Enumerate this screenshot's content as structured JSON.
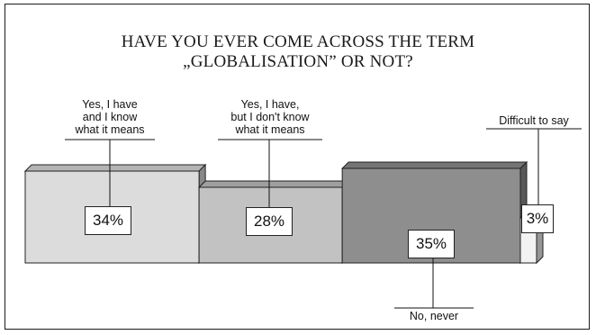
{
  "chart_data": {
    "type": "bar",
    "title": [
      "HAVE YOU EVER COME ACROSS THE TERM",
      "„GLOBALISATION” OR NOT?"
    ],
    "categories": [
      [
        "Yes, I have",
        "and I know",
        "what it means"
      ],
      [
        "Yes, I have,",
        "but I don't know",
        "what it means"
      ],
      [
        "No, never"
      ],
      [
        "Difficult to say"
      ]
    ],
    "values": [
      34,
      28,
      35,
      3
    ],
    "value_labels": [
      "34%",
      "28%",
      "35%",
      "3%"
    ],
    "colors": [
      "#dcdcdc",
      "#c2c2c2",
      "#8e8e8e",
      "#f2f2f2"
    ],
    "unit": "%"
  }
}
